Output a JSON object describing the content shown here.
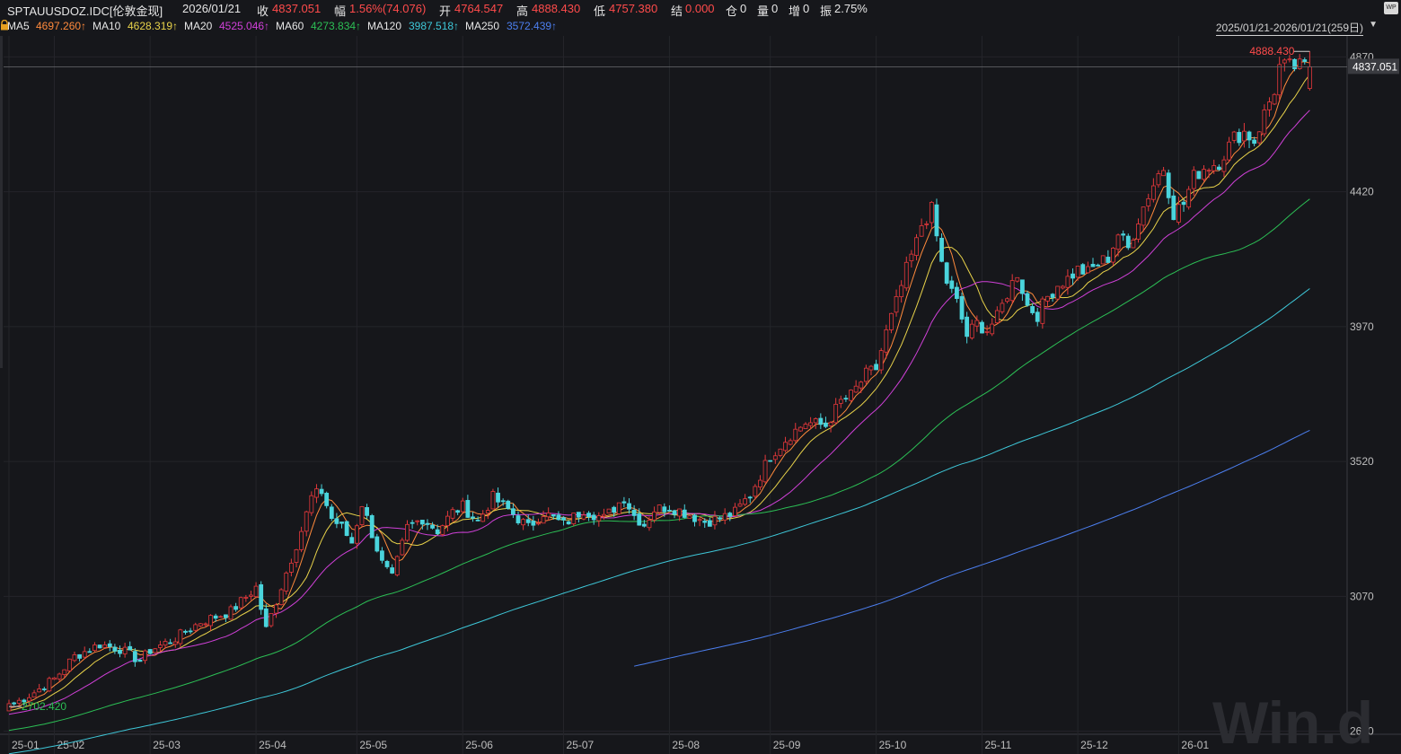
{
  "header": {
    "symbol": "SPTAUUSDOZ.IDC[伦敦金现]",
    "date": "2026/01/21",
    "close_label": "收",
    "close_value": "4837.051",
    "change_label": "幅",
    "change_value": "1.56%(74.076)",
    "open_label": "开",
    "open_value": "4764.547",
    "high_label": "高",
    "high_value": "4888.430",
    "low_label": "低",
    "low_value": "4757.380",
    "settle_label": "结",
    "settle_value": "0.000",
    "oi_label": "仓",
    "oi_value": "0",
    "volume_label": "量",
    "volume_value": "0",
    "increase_label": "增",
    "increase_value": "0",
    "amplitude_label": "振",
    "amplitude_value": "2.75%"
  },
  "ma_bar": {
    "items": [
      {
        "label": "MA5",
        "value": "4697.260↑",
        "color": "#ff8a3c"
      },
      {
        "label": "MA10",
        "value": "4628.319↑",
        "color": "#e8d24a"
      },
      {
        "label": "MA20",
        "value": "4525.046↑",
        "color": "#d040d8"
      },
      {
        "label": "MA60",
        "value": "4273.834↑",
        "color": "#2cbf55"
      },
      {
        "label": "MA120",
        "value": "3987.518↑",
        "color": "#3ec7d8"
      },
      {
        "label": "MA250",
        "value": "3572.439↑",
        "color": "#4c7ff0"
      }
    ]
  },
  "range": {
    "label": "2025/01/21-2026/01/21(259日)"
  },
  "chart_data": {
    "type": "candlestick",
    "title": "SPTAUUSDOZ.IDC[伦敦金现]",
    "y_ticks": [
      4870,
      4420,
      3970,
      3520,
      3070,
      2620
    ],
    "ylim": [
      2610,
      4940
    ],
    "x_tick_labels": [
      "25-01",
      "25-02",
      "25-03",
      "25-04",
      "25-05",
      "25-06",
      "25-07",
      "25-08",
      "25-09",
      "25-10",
      "25-11",
      "25-12",
      "26-01"
    ],
    "x_tick_index": [
      0,
      9,
      28,
      49,
      69,
      90,
      110,
      131,
      151,
      172,
      193,
      212,
      232
    ],
    "current_price": 4837.051,
    "max_label": "4888.430",
    "min_label": "2702.420",
    "up_color": "#e5383b",
    "down_color": "#4ad4dc",
    "count": 259,
    "waypoints": [
      [
        0,
        2702
      ],
      [
        5,
        2750
      ],
      [
        9,
        2795
      ],
      [
        13,
        2870
      ],
      [
        18,
        2910
      ],
      [
        22,
        2895
      ],
      [
        26,
        2855
      ],
      [
        28,
        2890
      ],
      [
        33,
        2930
      ],
      [
        38,
        2985
      ],
      [
        44,
        3020
      ],
      [
        49,
        3100
      ],
      [
        51,
        2960
      ],
      [
        55,
        3150
      ],
      [
        58,
        3290
      ],
      [
        60,
        3400
      ],
      [
        62,
        3420
      ],
      [
        64,
        3330
      ],
      [
        66,
        3300
      ],
      [
        68,
        3250
      ],
      [
        70,
        3380
      ],
      [
        72,
        3280
      ],
      [
        74,
        3180
      ],
      [
        76,
        3130
      ],
      [
        79,
        3300
      ],
      [
        82,
        3330
      ],
      [
        85,
        3290
      ],
      [
        88,
        3350
      ],
      [
        90,
        3370
      ],
      [
        93,
        3320
      ],
      [
        96,
        3400
      ],
      [
        99,
        3360
      ],
      [
        103,
        3300
      ],
      [
        106,
        3350
      ],
      [
        110,
        3310
      ],
      [
        114,
        3360
      ],
      [
        118,
        3330
      ],
      [
        122,
        3400
      ],
      [
        124,
        3340
      ],
      [
        126,
        3310
      ],
      [
        128,
        3360
      ],
      [
        131,
        3370
      ],
      [
        134,
        3350
      ],
      [
        138,
        3320
      ],
      [
        141,
        3330
      ],
      [
        144,
        3350
      ],
      [
        147,
        3410
      ],
      [
        151,
        3540
      ],
      [
        155,
        3610
      ],
      [
        158,
        3650
      ],
      [
        162,
        3640
      ],
      [
        165,
        3720
      ],
      [
        167,
        3740
      ],
      [
        170,
        3810
      ],
      [
        172,
        3830
      ],
      [
        174,
        3950
      ],
      [
        176,
        4050
      ],
      [
        178,
        4160
      ],
      [
        180,
        4250
      ],
      [
        181,
        4310
      ],
      [
        183,
        4360
      ],
      [
        185,
        4180
      ],
      [
        186,
        4120
      ],
      [
        188,
        4050
      ],
      [
        190,
        3940
      ],
      [
        192,
        3980
      ],
      [
        194,
        3960
      ],
      [
        196,
        4000
      ],
      [
        198,
        4080
      ],
      [
        200,
        4150
      ],
      [
        202,
        4040
      ],
      [
        204,
        4010
      ],
      [
        206,
        4070
      ],
      [
        208,
        4110
      ],
      [
        210,
        4130
      ],
      [
        212,
        4160
      ],
      [
        214,
        4150
      ],
      [
        216,
        4180
      ],
      [
        218,
        4200
      ],
      [
        220,
        4280
      ],
      [
        222,
        4230
      ],
      [
        224,
        4330
      ],
      [
        226,
        4410
      ],
      [
        228,
        4480
      ],
      [
        229,
        4500
      ],
      [
        231,
        4350
      ],
      [
        233,
        4380
      ],
      [
        235,
        4470
      ],
      [
        237,
        4500
      ],
      [
        240,
        4520
      ],
      [
        243,
        4600
      ],
      [
        245,
        4620
      ],
      [
        247,
        4590
      ],
      [
        249,
        4680
      ],
      [
        251,
        4760
      ],
      [
        252,
        4837
      ]
    ],
    "series": [
      {
        "name": "MA5",
        "color": "#ff8a3c",
        "period": 5,
        "value": "4697.260"
      },
      {
        "name": "MA10",
        "color": "#e8d24a",
        "period": 10,
        "value": "4628.319"
      },
      {
        "name": "MA20",
        "color": "#d040d8",
        "period": 20,
        "value": "4525.046"
      },
      {
        "name": "MA60",
        "color": "#2cbf55",
        "period": 60,
        "value": "4273.834"
      },
      {
        "name": "MA120",
        "color": "#3ec7d8",
        "period": 120,
        "value": "3987.518"
      },
      {
        "name": "MA250",
        "color": "#4c7ff0",
        "period": 250,
        "value": "3572.439"
      }
    ]
  },
  "watermark": "Win.d"
}
